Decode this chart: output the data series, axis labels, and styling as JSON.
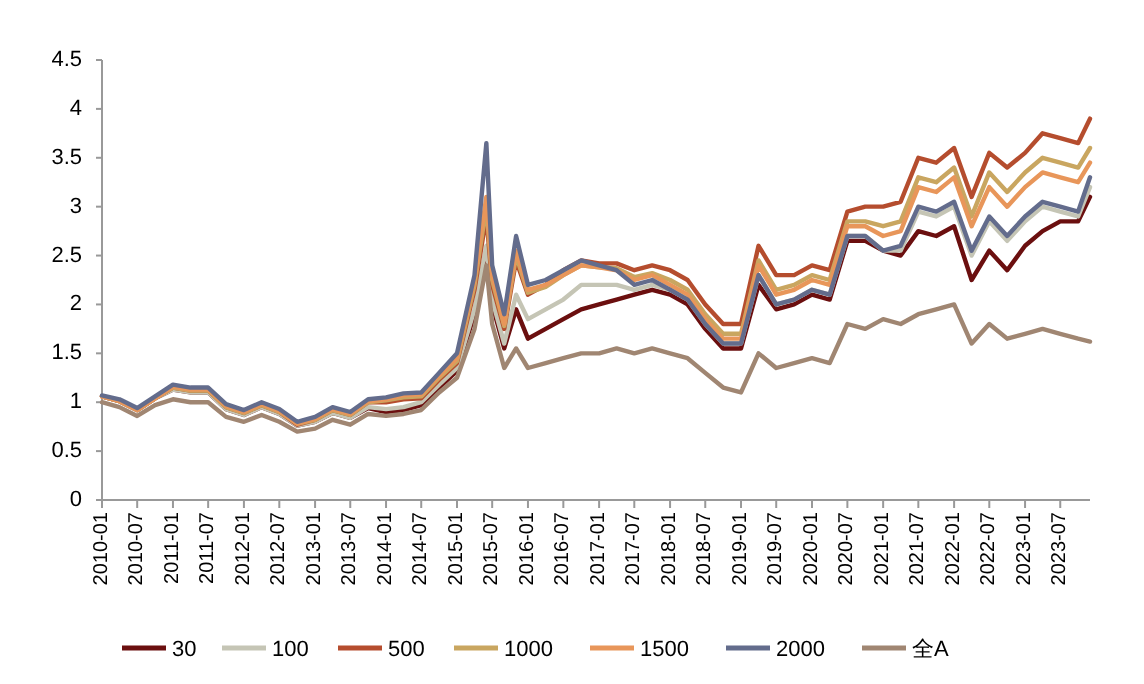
{
  "chart_data": {
    "type": "line",
    "x": [
      "2010-01",
      "2010-04",
      "2010-07",
      "2010-10",
      "2011-01",
      "2011-04",
      "2011-07",
      "2011-10",
      "2012-01",
      "2012-04",
      "2012-07",
      "2012-10",
      "2013-01",
      "2013-04",
      "2013-07",
      "2013-10",
      "2014-01",
      "2014-04",
      "2014-07",
      "2014-10",
      "2015-01",
      "2015-04",
      "2015-06",
      "2015-07",
      "2015-09",
      "2015-11",
      "2016-01",
      "2016-04",
      "2016-07",
      "2016-10",
      "2017-01",
      "2017-04",
      "2017-07",
      "2017-10",
      "2018-01",
      "2018-04",
      "2018-07",
      "2018-10",
      "2019-01",
      "2019-04",
      "2019-07",
      "2019-10",
      "2020-01",
      "2020-04",
      "2020-07",
      "2020-10",
      "2021-01",
      "2021-04",
      "2021-07",
      "2021-10",
      "2022-01",
      "2022-04",
      "2022-07",
      "2022-10",
      "2023-01",
      "2023-04",
      "2023-07",
      "2023-10",
      "2023-12"
    ],
    "series": [
      {
        "name": "30",
        "color": "#6b0f0f",
        "values": [
          1.06,
          1.01,
          0.92,
          1.04,
          1.13,
          1.1,
          1.1,
          0.93,
          0.87,
          0.95,
          0.88,
          0.76,
          0.8,
          0.89,
          0.84,
          0.94,
          0.9,
          0.92,
          0.97,
          1.15,
          1.32,
          1.9,
          2.55,
          2.0,
          1.55,
          1.95,
          1.65,
          1.75,
          1.85,
          1.95,
          2.0,
          2.05,
          2.1,
          2.15,
          2.1,
          2.0,
          1.75,
          1.55,
          1.55,
          2.2,
          1.95,
          2.0,
          2.1,
          2.05,
          2.65,
          2.65,
          2.55,
          2.5,
          2.75,
          2.7,
          2.8,
          2.25,
          2.55,
          2.35,
          2.6,
          2.75,
          2.85,
          2.85,
          3.1
        ]
      },
      {
        "name": "100",
        "color": "#c5c5b5",
        "values": [
          1.06,
          1.01,
          0.92,
          1.04,
          1.13,
          1.1,
          1.1,
          0.93,
          0.87,
          0.95,
          0.88,
          0.76,
          0.8,
          0.89,
          0.84,
          0.95,
          0.93,
          0.95,
          1.0,
          1.18,
          1.35,
          1.95,
          2.6,
          2.05,
          1.6,
          2.1,
          1.85,
          1.95,
          2.05,
          2.2,
          2.2,
          2.2,
          2.15,
          2.2,
          2.15,
          2.05,
          1.8,
          1.6,
          1.6,
          2.3,
          2.0,
          2.05,
          2.15,
          2.1,
          2.7,
          2.7,
          2.55,
          2.55,
          2.95,
          2.9,
          3.0,
          2.5,
          2.85,
          2.65,
          2.85,
          3.0,
          2.95,
          2.9,
          3.2
        ]
      },
      {
        "name": "500",
        "color": "#b54d2e",
        "values": [
          1.06,
          1.01,
          0.92,
          1.04,
          1.15,
          1.12,
          1.12,
          0.95,
          0.89,
          0.97,
          0.9,
          0.77,
          0.82,
          0.92,
          0.87,
          1.0,
          1.0,
          1.03,
          1.04,
          1.23,
          1.4,
          2.15,
          2.9,
          2.2,
          1.75,
          2.45,
          2.1,
          2.2,
          2.35,
          2.45,
          2.42,
          2.42,
          2.35,
          2.4,
          2.35,
          2.25,
          2.0,
          1.8,
          1.8,
          2.6,
          2.3,
          2.3,
          2.4,
          2.35,
          2.95,
          3.0,
          3.0,
          3.05,
          3.5,
          3.45,
          3.6,
          3.1,
          3.55,
          3.4,
          3.55,
          3.75,
          3.7,
          3.65,
          3.9
        ]
      },
      {
        "name": "1000",
        "color": "#c9a660",
        "values": [
          1.06,
          1.01,
          0.92,
          1.04,
          1.15,
          1.12,
          1.12,
          0.95,
          0.89,
          0.97,
          0.9,
          0.78,
          0.82,
          0.92,
          0.87,
          1.0,
          1.02,
          1.05,
          1.06,
          1.25,
          1.42,
          2.2,
          3.0,
          2.25,
          1.78,
          2.5,
          2.12,
          2.18,
          2.3,
          2.4,
          2.38,
          2.37,
          2.28,
          2.32,
          2.25,
          2.15,
          1.9,
          1.7,
          1.7,
          2.45,
          2.15,
          2.2,
          2.3,
          2.25,
          2.85,
          2.85,
          2.8,
          2.85,
          3.3,
          3.25,
          3.4,
          2.9,
          3.35,
          3.15,
          3.35,
          3.5,
          3.45,
          3.4,
          3.6
        ]
      },
      {
        "name": "1500",
        "color": "#e8965a",
        "values": [
          1.06,
          1.01,
          0.92,
          1.04,
          1.16,
          1.13,
          1.13,
          0.96,
          0.9,
          0.98,
          0.91,
          0.78,
          0.83,
          0.93,
          0.88,
          1.01,
          1.03,
          1.07,
          1.08,
          1.27,
          1.45,
          2.25,
          3.1,
          2.3,
          1.8,
          2.55,
          2.15,
          2.2,
          2.3,
          2.4,
          2.38,
          2.35,
          2.25,
          2.3,
          2.2,
          2.1,
          1.85,
          1.65,
          1.65,
          2.4,
          2.1,
          2.15,
          2.25,
          2.2,
          2.8,
          2.8,
          2.7,
          2.75,
          3.2,
          3.15,
          3.3,
          2.8,
          3.2,
          3.0,
          3.2,
          3.35,
          3.3,
          3.25,
          3.45
        ]
      },
      {
        "name": "2000",
        "color": "#636c8c",
        "values": [
          1.07,
          1.03,
          0.94,
          1.06,
          1.18,
          1.15,
          1.15,
          0.98,
          0.92,
          1.0,
          0.93,
          0.8,
          0.85,
          0.95,
          0.9,
          1.03,
          1.05,
          1.09,
          1.1,
          1.3,
          1.5,
          2.3,
          3.65,
          2.4,
          1.9,
          2.7,
          2.2,
          2.25,
          2.35,
          2.45,
          2.4,
          2.35,
          2.2,
          2.25,
          2.15,
          2.05,
          1.8,
          1.6,
          1.6,
          2.3,
          2.0,
          2.05,
          2.15,
          2.1,
          2.7,
          2.7,
          2.55,
          2.6,
          3.0,
          2.95,
          3.05,
          2.55,
          2.9,
          2.7,
          2.9,
          3.05,
          3.0,
          2.95,
          3.3
        ]
      },
      {
        "name": "全A",
        "color": "#a08672",
        "values": [
          1.0,
          0.95,
          0.86,
          0.97,
          1.03,
          1.0,
          1.0,
          0.85,
          0.8,
          0.87,
          0.8,
          0.7,
          0.73,
          0.82,
          0.77,
          0.88,
          0.86,
          0.88,
          0.92,
          1.1,
          1.25,
          1.75,
          2.4,
          1.8,
          1.35,
          1.55,
          1.35,
          1.4,
          1.45,
          1.5,
          1.5,
          1.55,
          1.5,
          1.55,
          1.5,
          1.45,
          1.3,
          1.15,
          1.1,
          1.5,
          1.35,
          1.4,
          1.45,
          1.4,
          1.8,
          1.75,
          1.85,
          1.8,
          1.9,
          1.95,
          2.0,
          1.6,
          1.8,
          1.65,
          1.7,
          1.75,
          1.7,
          1.65,
          1.62
        ]
      }
    ],
    "xlim": [
      "2010-01",
      "2023-12"
    ],
    "xticks": [
      "2010-01",
      "2010-07",
      "2011-01",
      "2011-07",
      "2012-01",
      "2012-07",
      "2013-01",
      "2013-07",
      "2014-01",
      "2014-07",
      "2015-01",
      "2015-07",
      "2016-01",
      "2016-07",
      "2017-01",
      "2017-07",
      "2018-01",
      "2018-07",
      "2019-01",
      "2019-07",
      "2020-01",
      "2020-07",
      "2021-01",
      "2021-07",
      "2022-01",
      "2022-07",
      "2023-01",
      "2023-07"
    ],
    "ylim": [
      0,
      4.5
    ],
    "yticks": [
      0,
      0.5,
      1,
      1.5,
      2,
      2.5,
      3,
      3.5,
      4,
      4.5
    ],
    "grid": false,
    "legend": "bottom",
    "marker": "none",
    "line_style": "solid"
  }
}
